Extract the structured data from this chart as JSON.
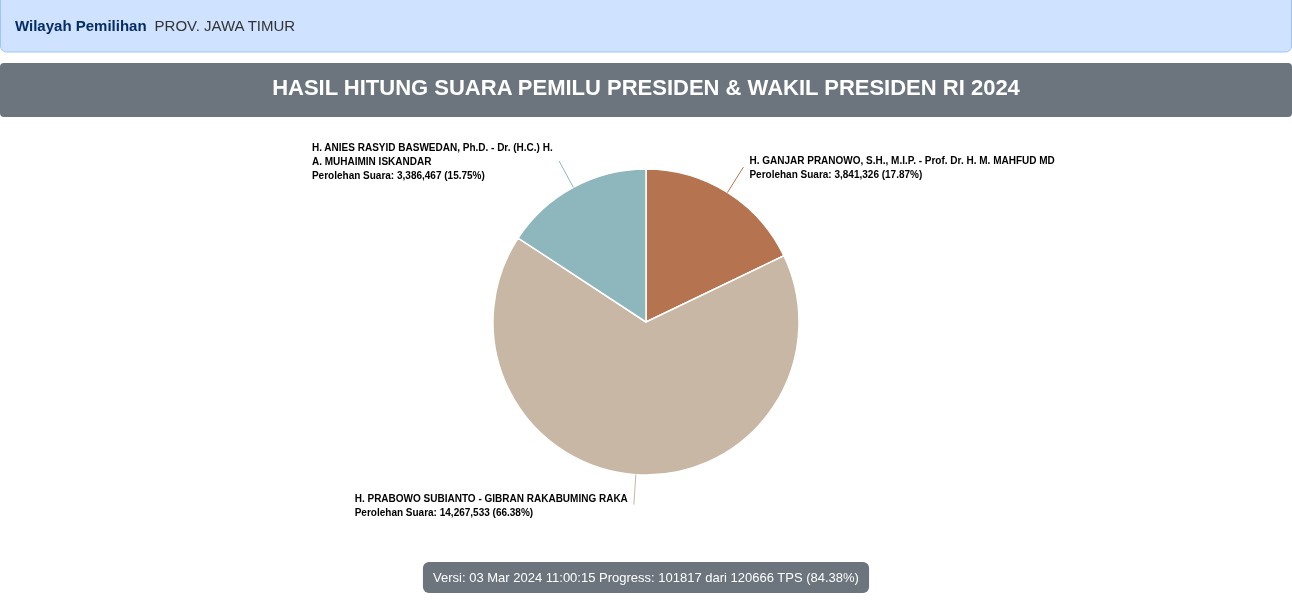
{
  "chart_data": {
    "type": "pie",
    "title": "HASIL HITUNG SUARA PEMILU PRESIDEN & WAKIL PRESIDEN RI 2024",
    "categories": [
      "H. GANJAR PRANOWO, S.H., M.I.P. - Prof. Dr. H. M. MAHFUD MD",
      "H. PRABOWO SUBIANTO - GIBRAN RAKABUMING RAKA",
      "H. ANIES RASYID BASWEDAN, Ph.D. - Dr. (H.C.) H. A. MUHAIMIN ISKANDAR"
    ],
    "values": [
      3841326,
      14267533,
      3386467
    ],
    "colors": [
      "#b5734f",
      "#c8b7a4",
      "#8db7bd"
    ],
    "value_labels": [
      "Perolehan Suara: 3,841,326 (17.87%)",
      "Perolehan Suara: 14,267,533 (66.38%)",
      "Perolehan Suara: 3,386,467 (15.75%)"
    ],
    "annotations": [
      "Wilayah Pemilihan",
      "PROV. JAWA TIMUR",
      "Versi: 03 Mar 2024 11:00:15 Progress: 101817 dari 120666 TPS (84.38%)"
    ]
  }
}
